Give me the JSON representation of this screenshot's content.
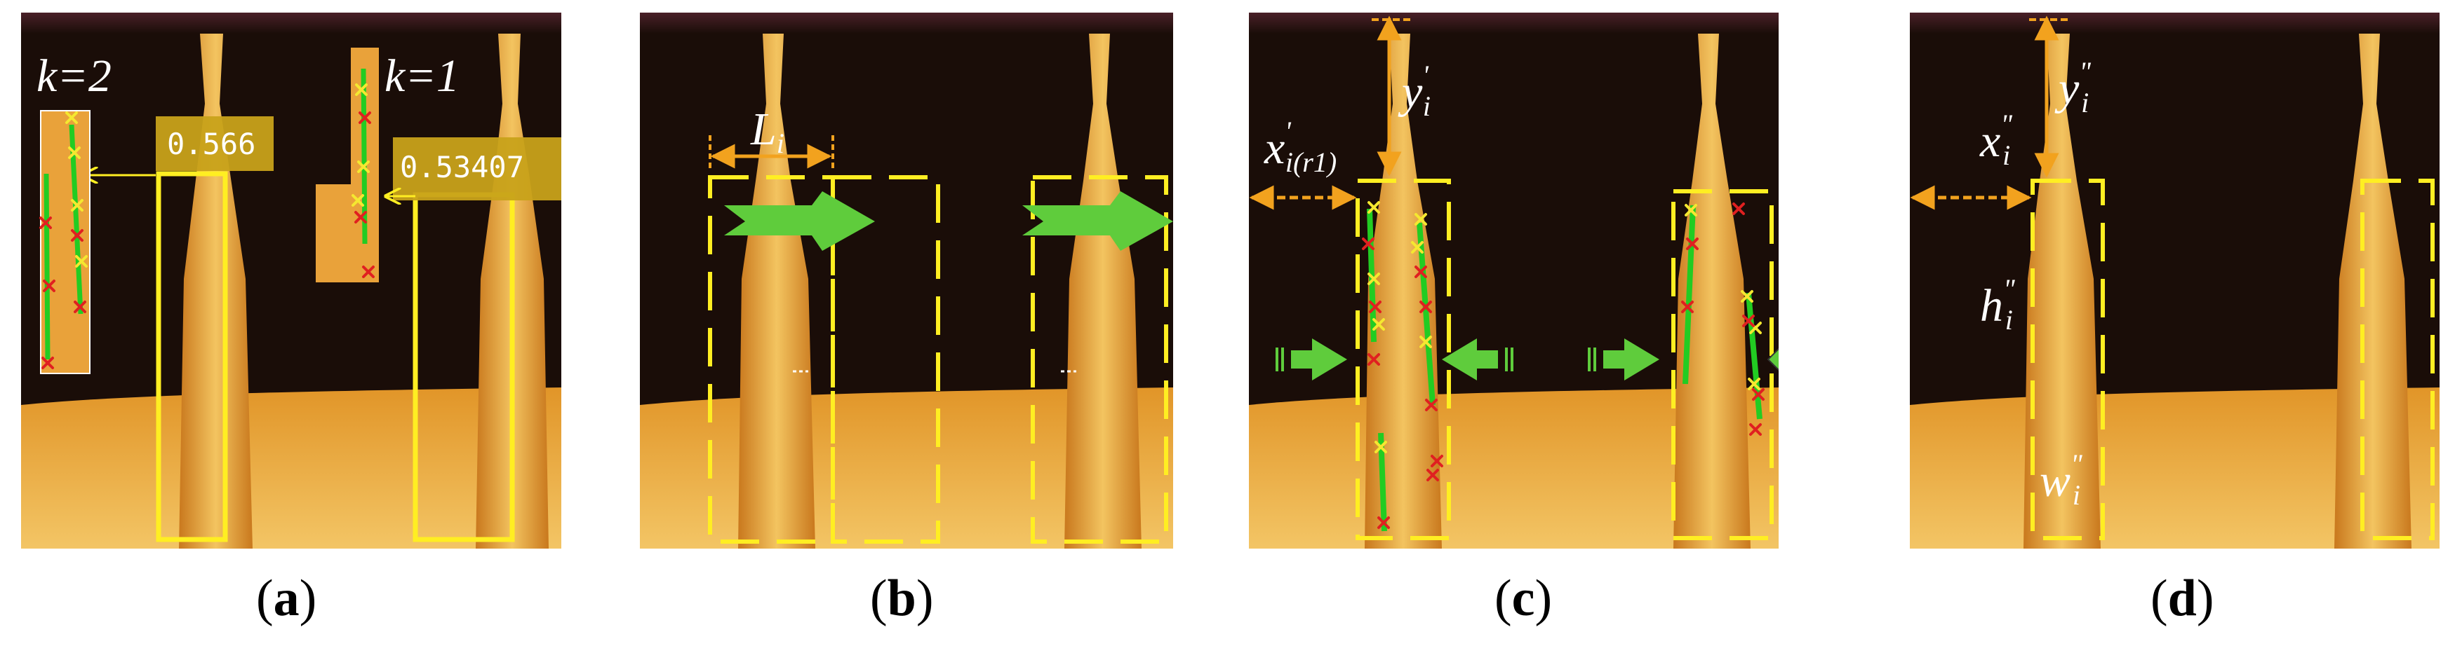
{
  "panels": [
    {
      "id": "a",
      "caption": "a",
      "labels": {
        "k2": "k=2",
        "k1": "k=1",
        "score_left": "0.566",
        "score_right": "0.53407"
      }
    },
    {
      "id": "b",
      "caption": "b",
      "labels": {
        "width": "L",
        "width_sub": "i"
      }
    },
    {
      "id": "c",
      "caption": "c",
      "labels": {
        "x_base": "x",
        "x_sup": "'",
        "x_sub": "i(r1)",
        "y_base": "y",
        "y_sup": "'",
        "y_sub": "i"
      }
    },
    {
      "id": "d",
      "caption": "d",
      "labels": {
        "x_base": "x",
        "x_sup": "\"",
        "x_sub": "i",
        "y_base": "y",
        "y_sup": "\"",
        "y_sub": "i",
        "h_base": "h",
        "h_sup": "\"",
        "h_sub": "i",
        "w_base": "w",
        "w_sup": "\"",
        "w_sub": "i"
      }
    }
  ],
  "colors": {
    "background_dark": "#1a0d08",
    "glow_core": "#f0b040",
    "glow_base": "#e39a30",
    "box_yellow": "#ffee22",
    "arrow_orange": "#f2a21e",
    "arrow_green": "#5fcc3c",
    "marker_red": "#e02020",
    "marker_yellow": "#f5e830",
    "line_green": "#22cc22"
  }
}
